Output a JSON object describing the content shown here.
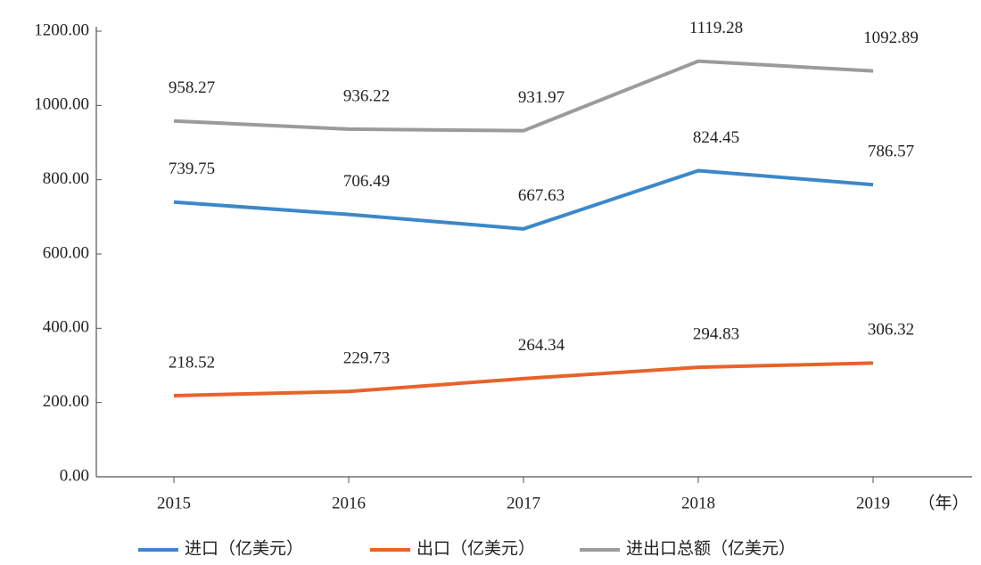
{
  "chart_data": {
    "type": "line",
    "categories": [
      "2015",
      "2016",
      "2017",
      "2018",
      "2019"
    ],
    "x_unit": "（年）",
    "series": [
      {
        "name": "进口（亿美元）",
        "color": "#3b88c9",
        "values": [
          739.75,
          706.49,
          667.63,
          824.45,
          786.57
        ]
      },
      {
        "name": "出口（亿美元）",
        "color": "#e8622a",
        "values": [
          218.52,
          229.73,
          264.34,
          294.83,
          306.32
        ]
      },
      {
        "name": "进出口总额（亿美元）",
        "color": "#9b9b9b",
        "values": [
          958.27,
          936.22,
          931.97,
          1119.28,
          1092.89
        ]
      }
    ],
    "ylim": [
      0,
      1200
    ],
    "yticks": [
      {
        "value": 0,
        "label": "0.00"
      },
      {
        "value": 200,
        "label": "200.00"
      },
      {
        "value": 400,
        "label": "400.00"
      },
      {
        "value": 600,
        "label": "600.00"
      },
      {
        "value": 800,
        "label": "800.00"
      },
      {
        "value": 1000,
        "label": "1000.00"
      },
      {
        "value": 1200,
        "label": "1200.00"
      }
    ],
    "grid": false,
    "legend": "bottom"
  }
}
